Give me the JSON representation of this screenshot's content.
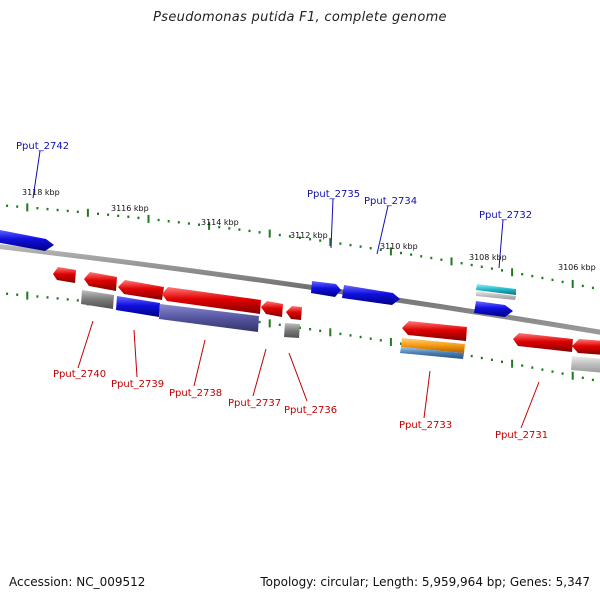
{
  "title": "Pseudomonas putida F1, complete genome",
  "footer": {
    "accession": "Accession: NC_009512",
    "summary": "Topology: circular; Length: 5,959,964 bp; Genes: 5,347"
  },
  "colors": {
    "background": "#ffffff",
    "backbone": "#7a7a7a",
    "tick": "#1f7a1f",
    "forward_gene": "#1010e0",
    "reverse_gene": "#e00000",
    "forward_label": "#1010b0",
    "reverse_label": "#c00000",
    "gray_feature": "#808080",
    "cyan_feature": "#20b8c8",
    "orange_feature": "#f59a10",
    "steel_feature": "#4a7fb5",
    "slate_feature": "#5555a0"
  },
  "scale_labels": [
    "3118 kbp",
    "3116 kbp",
    "3114 kbp",
    "3112 kbp",
    "3110 kbp",
    "3108 kbp",
    "3106 kbp"
  ],
  "forward_labels": [
    "Pput_2742",
    "Pput_2735",
    "Pput_2734",
    "Pput_2732"
  ],
  "reverse_labels": [
    "Pput_2740",
    "Pput_2739",
    "Pput_2738",
    "Pput_2737",
    "Pput_2736",
    "Pput_2733",
    "Pput_2731"
  ]
}
